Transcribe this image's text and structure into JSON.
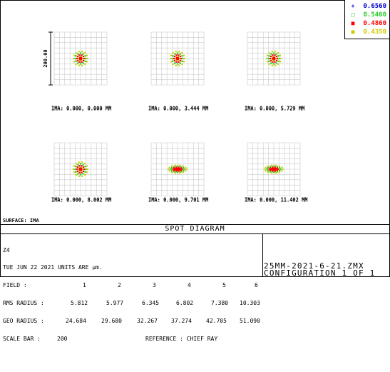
{
  "legend": [
    {
      "symbol": "+",
      "value": "0.6560",
      "color": "#0000cc"
    },
    {
      "symbol": "□",
      "value": "0.5460",
      "color": "#22cc22"
    },
    {
      "symbol": "■",
      "value": "0.4860",
      "color": "#ff0000"
    },
    {
      "symbol": "■",
      "value": "0.4350",
      "color": "#cccc00"
    }
  ],
  "scale_label": "200.00",
  "fields": [
    {
      "caption": "IMA: 0.000, 0.000 MM"
    },
    {
      "caption": "IMA: 0.000, 3.444 MM"
    },
    {
      "caption": "IMA: 0.000, 5.729 MM"
    },
    {
      "caption": "IMA: 0.000, 8.002 MM"
    },
    {
      "caption": "IMA: 0.000, 9.701 MM"
    },
    {
      "caption": "IMA: 0.000, 11.402 MM"
    }
  ],
  "surface": "SURFACE: IMA",
  "title": "SPOT DIAGRAM",
  "info": {
    "line1": "Z4",
    "line2": "TUE JUN 22 2021  UNITS ARE µm.",
    "field_label": "FIELD      :",
    "field_values": [
      "1",
      "2",
      "3",
      "4",
      "5",
      "6"
    ],
    "rms_label": "RMS RADIUS :",
    "rms_values": [
      "5.812",
      "5.977",
      "6.345",
      "6.802",
      "7.380",
      "10.303"
    ],
    "geo_label": "GEO RADIUS :",
    "geo_values": [
      "24.684",
      "29.680",
      "32.267",
      "37.274",
      "42.705",
      "51.090"
    ],
    "scale_bar_label": "SCALE BAR  :",
    "scale_bar_value": "200",
    "reference": "REFERENCE  : CHIEF RAY"
  },
  "file_name": "25MM-2021-6-21.ZMX",
  "configuration": "CONFIGURATION 1 OF 1"
}
